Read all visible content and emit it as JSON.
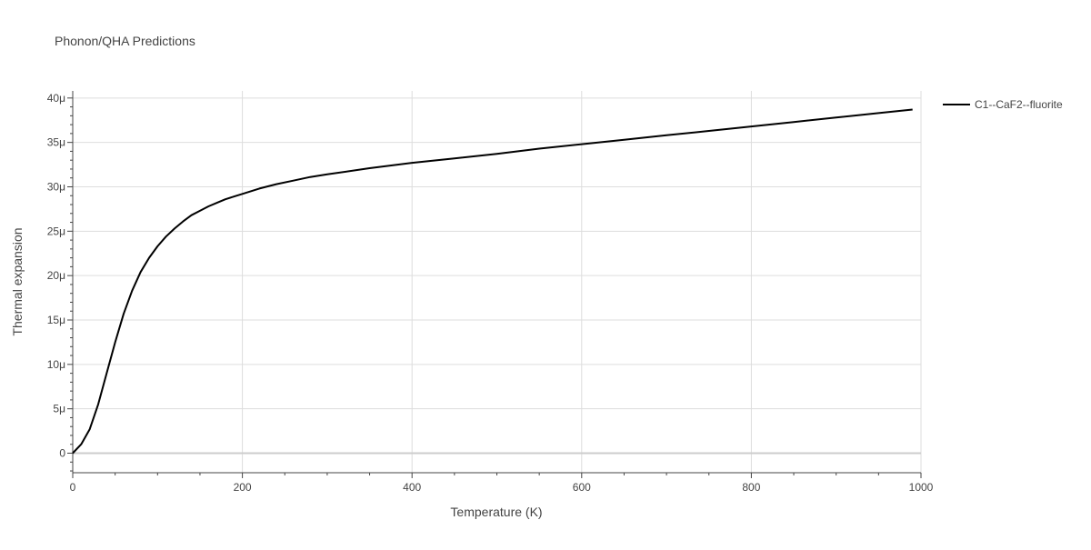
{
  "chart_data": {
    "type": "line",
    "title": "Phonon/QHA Predictions",
    "xlabel": "Temperature (K)",
    "ylabel": "Thermal expansion",
    "xlim": [
      0,
      1000
    ],
    "ylim": [
      -2.2,
      40.8
    ],
    "x_ticks": [
      0,
      200,
      400,
      600,
      800,
      1000
    ],
    "x_tick_labels": [
      "0",
      "200",
      "400",
      "600",
      "800",
      "1000"
    ],
    "y_ticks": [
      0,
      5,
      10,
      15,
      20,
      25,
      30,
      35,
      40
    ],
    "y_tick_labels": [
      "0",
      "5μ",
      "10μ",
      "15μ",
      "20μ",
      "25μ",
      "30μ",
      "35μ",
      "40μ"
    ],
    "y_unit": "μ",
    "grid": true,
    "legend_position": "top-right",
    "series": [
      {
        "name": "C1--CaF2--fluorite",
        "color": "#000000",
        "x": [
          0,
          10,
          20,
          30,
          40,
          50,
          60,
          70,
          80,
          90,
          100,
          110,
          120,
          130,
          140,
          150,
          160,
          170,
          180,
          190,
          200,
          220,
          240,
          260,
          280,
          300,
          350,
          400,
          450,
          500,
          550,
          600,
          650,
          700,
          750,
          800,
          850,
          900,
          950,
          990
        ],
        "values": [
          0,
          1.0,
          2.7,
          5.5,
          9.0,
          12.5,
          15.7,
          18.3,
          20.4,
          22.0,
          23.3,
          24.4,
          25.3,
          26.1,
          26.8,
          27.3,
          27.8,
          28.2,
          28.6,
          28.9,
          29.2,
          29.8,
          30.3,
          30.7,
          31.1,
          31.4,
          32.1,
          32.7,
          33.2,
          33.7,
          34.3,
          34.8,
          35.3,
          35.8,
          36.3,
          36.8,
          37.3,
          37.8,
          38.3,
          38.7
        ]
      }
    ]
  }
}
